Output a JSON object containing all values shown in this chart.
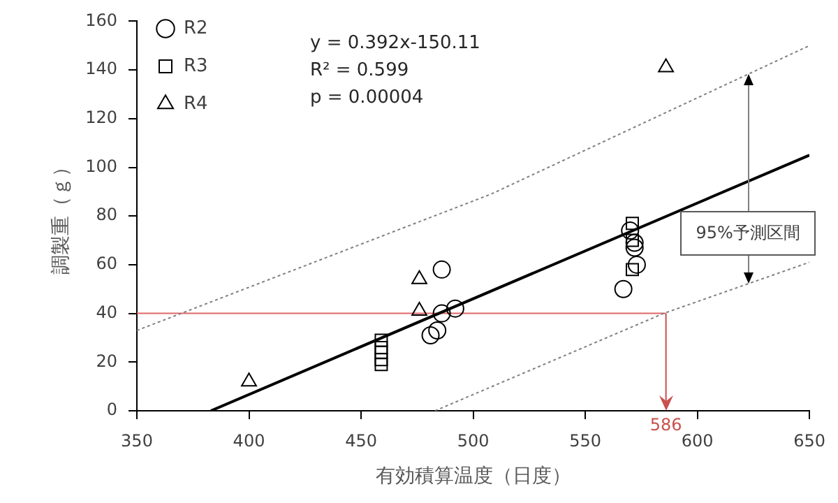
{
  "chart_data": {
    "type": "scatter",
    "xlabel": "有効積算温度（日度）",
    "ylabel": "調製重（ｇ）",
    "xlim": [
      350,
      650
    ],
    "ylim": [
      0,
      160
    ],
    "xticks": [
      350,
      400,
      450,
      500,
      550,
      600,
      650
    ],
    "yticks": [
      0,
      20,
      40,
      60,
      80,
      100,
      120,
      140,
      160
    ],
    "grid": false,
    "legend": "top left",
    "series": [
      {
        "name": "R2",
        "marker": "circle",
        "color": "#000000",
        "x": [
          486,
          486,
          492,
          481,
          484,
          570,
          572,
          572,
          573,
          567
        ],
        "values": [
          58,
          40,
          42,
          31,
          33,
          74,
          69,
          67,
          60,
          50
        ]
      },
      {
        "name": "R3",
        "marker": "square",
        "color": "#000000",
        "x": [
          459,
          459,
          459,
          459,
          459,
          571,
          571,
          571
        ],
        "values": [
          29,
          26,
          24,
          21,
          19,
          77,
          70,
          58
        ]
      },
      {
        "name": "R4",
        "marker": "triangle",
        "color": "#000000",
        "x": [
          400,
          476,
          476,
          586
        ],
        "values": [
          12,
          54,
          41,
          141
        ]
      },
      {
        "type": "line",
        "color": "#000000",
        "marker": "none",
        "line_style": "solid",
        "x": [
          383,
          650
        ],
        "values": [
          0,
          105
        ]
      },
      {
        "type": "line",
        "color": "#808080",
        "marker": "none",
        "line_style": "dotted",
        "x": [
          350,
          508,
          650
        ],
        "values": [
          33,
          89,
          150
        ]
      },
      {
        "type": "line",
        "color": "#808080",
        "marker": "none",
        "line_style": "dotted",
        "x": [
          483,
          585,
          650
        ],
        "values": [
          0,
          40,
          61
        ]
      }
    ],
    "ref_lines": [
      {
        "axis": "y",
        "value": 40,
        "color": "#e06666"
      },
      {
        "axis": "x",
        "value": 586,
        "label": "586",
        "color": "#c8504d"
      }
    ],
    "annotations": [
      "y = 0.392x-150.11",
      "R² = 0.599",
      "p = 0.00004",
      "95%予測区間"
    ]
  }
}
